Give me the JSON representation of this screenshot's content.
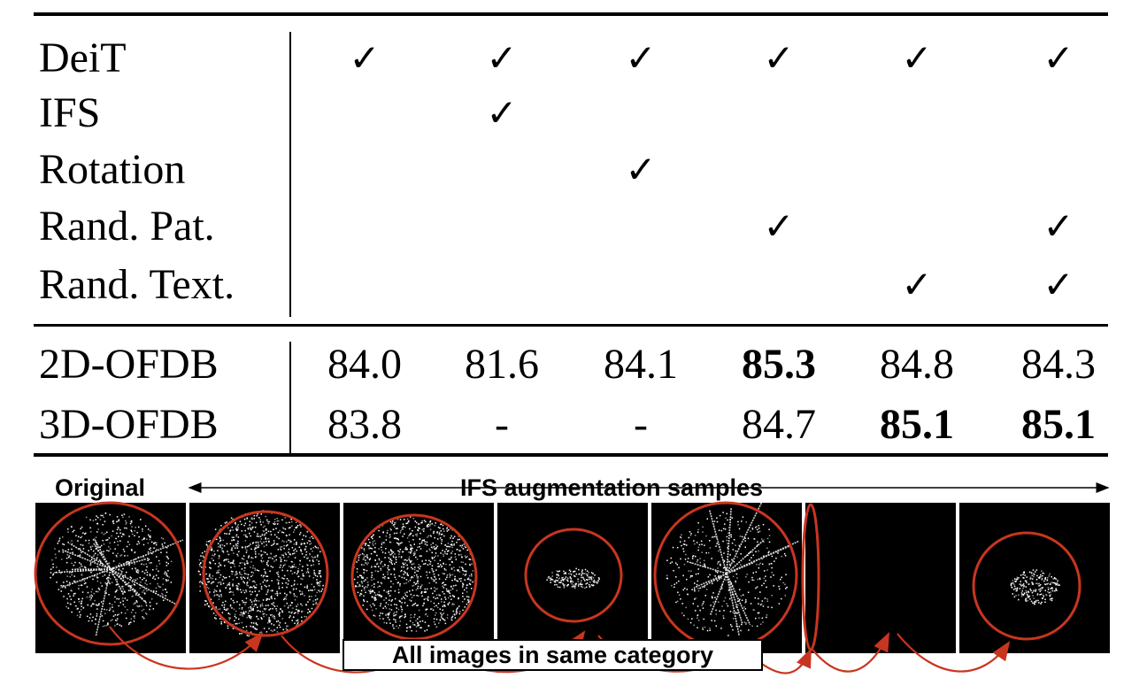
{
  "table": {
    "methods": [
      "DeiT",
      "IFS",
      "Rotation",
      "Rand. Pat.",
      "Rand. Text."
    ],
    "checks": [
      [
        true,
        true,
        true,
        true,
        true,
        true
      ],
      [
        false,
        true,
        false,
        false,
        false,
        false
      ],
      [
        false,
        false,
        true,
        false,
        false,
        false
      ],
      [
        false,
        false,
        false,
        true,
        false,
        true
      ],
      [
        false,
        false,
        false,
        false,
        true,
        true
      ]
    ],
    "check_glyph": "✓",
    "results": [
      {
        "dataset": "2D-OFDB",
        "values": [
          "84.0",
          "81.6",
          "84.1",
          "85.3",
          "84.8",
          "84.3"
        ],
        "bold": [
          false,
          false,
          false,
          true,
          false,
          false
        ]
      },
      {
        "dataset": "3D-OFDB",
        "values": [
          "83.8",
          "-",
          "-",
          "84.7",
          "85.1",
          "85.1"
        ],
        "bold": [
          false,
          false,
          false,
          false,
          true,
          true
        ]
      }
    ]
  },
  "figure": {
    "original_label": "Original",
    "augmentation_label": "IFS augmentation samples",
    "caption": "All images in same category",
    "circle_color": "#c8361f",
    "panel_names": [
      "sample-original",
      "sample-aug-1",
      "sample-aug-2",
      "sample-aug-3",
      "sample-aug-4",
      "sample-aug-5",
      "sample-aug-6"
    ]
  }
}
